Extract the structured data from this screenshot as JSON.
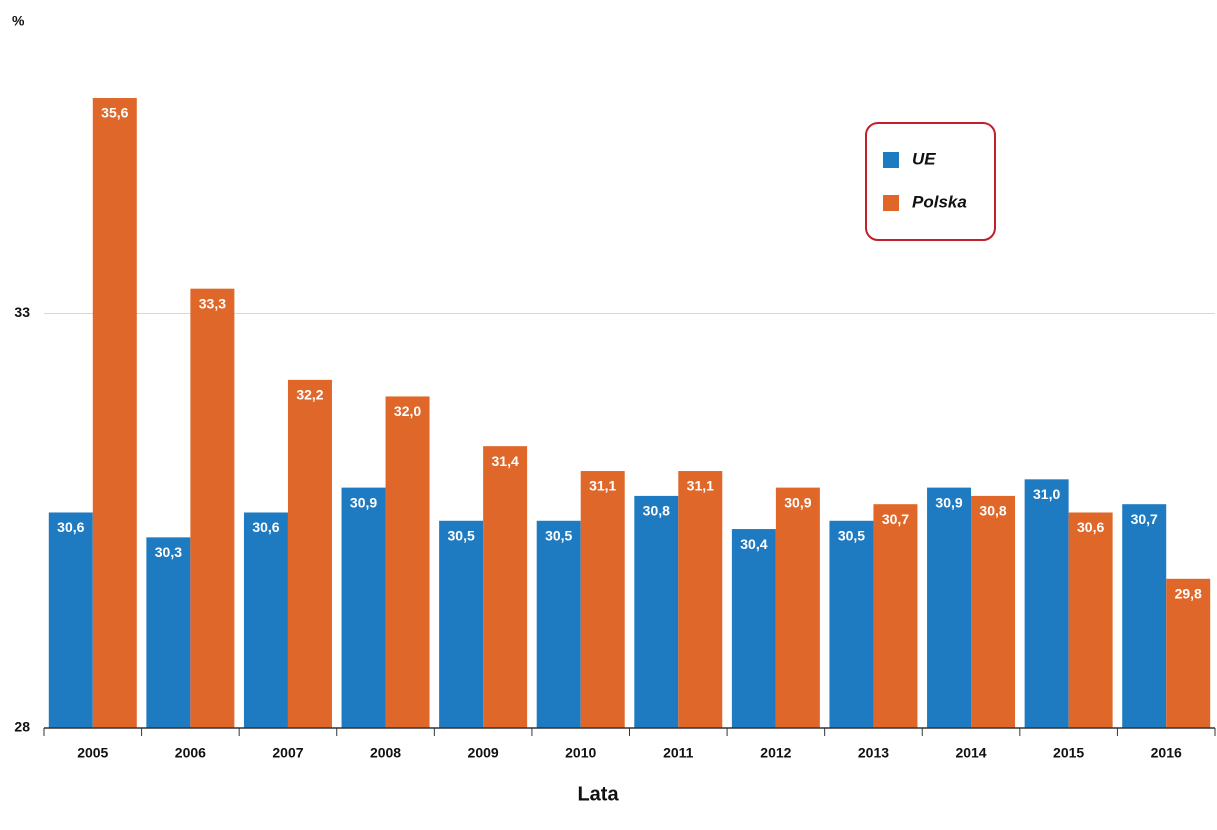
{
  "chart_data": {
    "type": "bar",
    "y_axis_label": "%",
    "x_axis_label": "Lata",
    "categories": [
      "2005",
      "2006",
      "2007",
      "2008",
      "2009",
      "2010",
      "2011",
      "2012",
      "2013",
      "2014",
      "2015",
      "2016"
    ],
    "series": [
      {
        "name": "UE",
        "color": "#1f7bc1",
        "values": [
          30.6,
          30.3,
          30.6,
          30.9,
          30.5,
          30.5,
          30.8,
          30.4,
          30.5,
          30.9,
          31.0,
          30.7
        ],
        "value_labels": [
          "30,6",
          "30,3",
          "30,6",
          "30,9",
          "30,5",
          "30,5",
          "30,8",
          "30,4",
          "30,5",
          "30,9",
          "31,0",
          "30,7"
        ]
      },
      {
        "name": "Polska",
        "color": "#e0672a",
        "values": [
          35.6,
          33.3,
          32.2,
          32.0,
          31.4,
          31.1,
          31.1,
          30.9,
          30.7,
          30.8,
          30.6,
          29.8
        ],
        "value_labels": [
          "35,6",
          "33,3",
          "32,2",
          "32,0",
          "31,4",
          "31,1",
          "31,1",
          "30,9",
          "30,7",
          "30,8",
          "30,6",
          "29,8"
        ]
      }
    ],
    "ylim": [
      28,
      36.3
    ],
    "yticks": [
      28,
      33
    ],
    "grid": true,
    "legend": "top-right"
  }
}
